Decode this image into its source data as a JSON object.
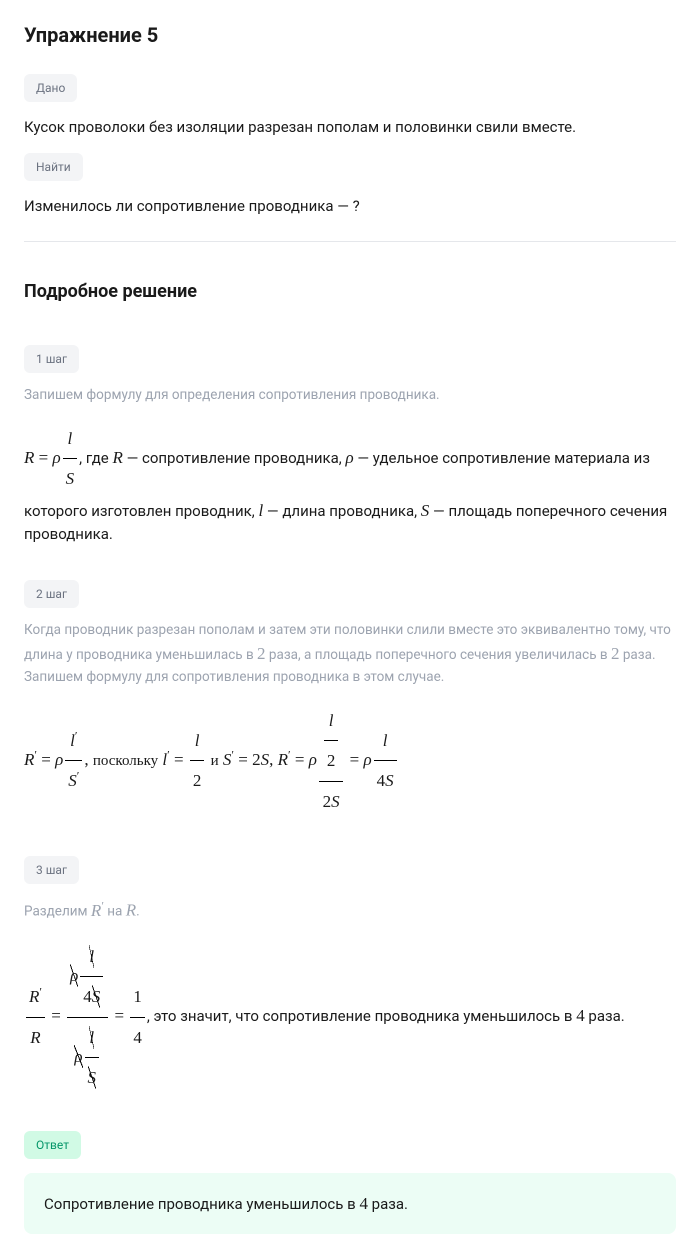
{
  "title": "Упражнение 5",
  "given": {
    "tag": "Дано",
    "text": "Кусок проволоки без изоляции разрезан пополам и половинки свили вместе."
  },
  "find": {
    "tag": "Найти",
    "text": "Изменилось ли сопротивление проводника — ?"
  },
  "solution": {
    "title": "Подробное решение",
    "steps": [
      {
        "tag": "1 шаг",
        "intro": "Запишем формулу для определения сопротивления проводника.",
        "formula_html": "<span class='mi'>R</span> = <span class='mi'>ρ</span><span class='frac'><span class='num'><span class='mi'>l</span></span><span class='den'><span class='mi'>S</span></span></span>",
        "desc": ", где <span class='math'><span class='mi'>R</span></span> — сопротивление проводника, <span class='math'><span class='mi'>ρ</span></span> — удельное сопротивление материала из которого изготовлен проводник, <span class='math'><span class='mi'>l</span></span> — длина проводника, <span class='math'><span class='mi'>S</span></span> — площадь поперечного сечения проводника."
      },
      {
        "tag": "2 шаг",
        "intro": "Когда проводник разрезан пополам и затем эти половинки слили вместе это эквивалентно тому, что длина у проводника уменьшилась в <span class='math'>2</span> раза, а площадь поперечного сечения увеличилась в <span class='math'>2</span> раза. Запишем формулу для сопротивления проводника в этом случае.",
        "formula_html": "<span class='mi'>R</span><span class='sup'>′</span> = <span class='mi'>ρ</span><span class='frac'><span class='num'><span class='mi'>l</span><span class='sup'>′</span></span><span class='den'><span class='mi'>S</span><span class='sup'>′</span></span></span>, <span style='font-family:inherit;font-style:normal;font-size:15px'>поскольку</span> <span class='mi'>l</span><span class='sup'>′</span> = <span class='frac'><span class='num'><span class='mi'>l</span></span><span class='den'>2</span></span> <span style='font-family:inherit;font-style:normal;font-size:15px'>и</span> <span class='mi'>S</span><span class='sup'>′</span> = 2<span class='mi'>S</span>, <span class='mi'>R</span><span class='sup'>′</span> = <span class='mi'>ρ</span><span class='frac'><span class='num'><span class='frac'><span class='num'><span class='mi'>l</span></span><span class='den'>2</span></span></span><span class='den'>2<span class='mi'>S</span></span></span> = <span class='mi'>ρ</span><span class='frac'><span class='num'><span class='mi'>l</span></span><span class='den'>4<span class='mi'>S</span></span></span>"
      },
      {
        "tag": "3 шаг",
        "intro": "Разделим <span class='math'><span class='mi'>R</span><span class='sup'>′</span></span> на <span class='math'><span class='mi'>R</span></span>.",
        "formula_html": "<span class='frac'><span class='num'><span class='mi'>R</span><span class='sup'>′</span></span><span class='den'><span class='mi'>R</span></span></span> = <span class='frac'><span class='num'><span class='strike-d'><span class='mi'>ρ</span></span><span class='frac'><span class='num'><span class='strike-d'><span class='mi'>l</span></span></span><span class='den'>4<span class='strike-d'><span class='mi'>S</span></span></span></span></span><span class='den'><span class='strike-d'><span class='mi'>ρ</span></span><span class='frac'><span class='num'><span class='strike-d'><span class='mi'>l</span></span></span><span class='den'><span class='strike-d'><span class='mi'>S</span></span></span></span></span></span> = <span class='frac'><span class='num'>1</span><span class='den'>4</span></span>",
        "desc": ", это значит, что сопротивление проводника уменьшилось в <span class='math'>4</span> раза."
      }
    ]
  },
  "answer": {
    "tag": "Ответ",
    "text": "Сопротивление проводника уменьшилось в <span class='math'>4</span> раза."
  },
  "colors": {
    "tag_bg": "#f3f4f6",
    "tag_text": "#6b7280",
    "answer_tag_bg": "#d1fae5",
    "answer_tag_text": "#059669",
    "answer_box_bg": "#ecfdf5",
    "body_text": "#1a1a1a",
    "gray_text": "#9ca3af",
    "divider": "#e5e7eb"
  }
}
